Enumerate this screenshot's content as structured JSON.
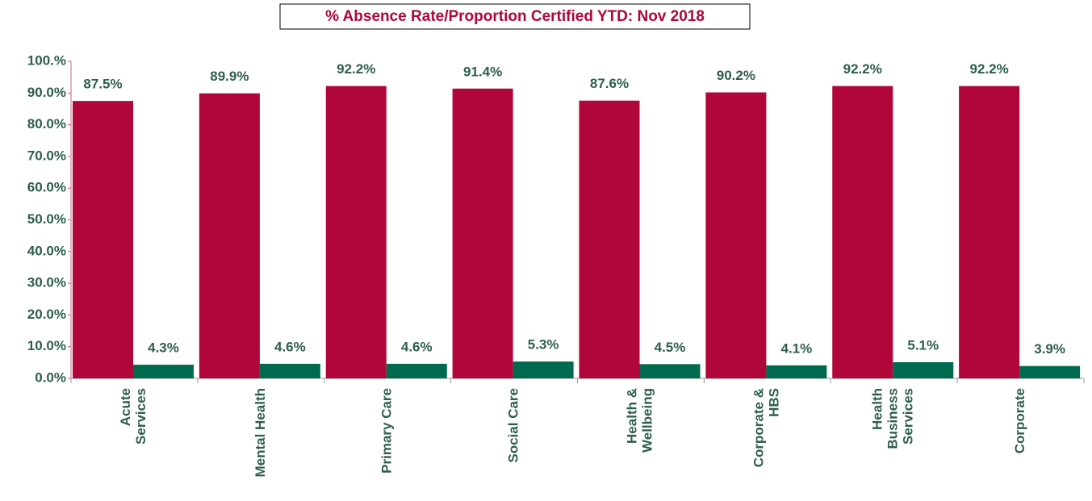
{
  "chart_data": {
    "type": "bar",
    "title": "% Absence Rate/Proportion Certified YTD: Nov 2018",
    "categories": [
      "Acute\nServices",
      "Mental Health",
      "Primary Care",
      "Social Care",
      "Health &\nWellbeing",
      "Corporate &\nHBS",
      "Health\nBusiness\nServices",
      "Corporate"
    ],
    "series": [
      {
        "color": "#b0063a",
        "values": [
          87.5,
          89.9,
          92.2,
          91.4,
          87.6,
          90.2,
          92.2,
          92.2
        ],
        "value_labels": [
          "87.5%",
          "89.9%",
          "92.2%",
          "91.4%",
          "87.6%",
          "90.2%",
          "92.2%",
          "92.2%"
        ]
      },
      {
        "color": "#006a4e",
        "values": [
          4.3,
          4.6,
          4.6,
          5.3,
          4.5,
          4.1,
          5.1,
          3.9
        ],
        "value_labels": [
          "4.3%",
          "4.6%",
          "4.6%",
          "5.3%",
          "4.5%",
          "4.1%",
          "5.1%",
          "3.9%"
        ]
      }
    ],
    "ylim": [
      0,
      100
    ],
    "yticks": [
      {
        "value": 0,
        "label": "0.0%"
      },
      {
        "value": 10,
        "label": "10.0%"
      },
      {
        "value": 20,
        "label": "20.0%"
      },
      {
        "value": 30,
        "label": "30.0%"
      },
      {
        "value": 40,
        "label": "40.0%"
      },
      {
        "value": 50,
        "label": "50.0%"
      },
      {
        "value": 60,
        "label": "60.0%"
      },
      {
        "value": 70,
        "label": "70.0%"
      },
      {
        "value": 80,
        "label": "80.0%"
      },
      {
        "value": 90,
        "label": "90.0%"
      },
      {
        "value": 100,
        "label": "100.%"
      }
    ]
  }
}
